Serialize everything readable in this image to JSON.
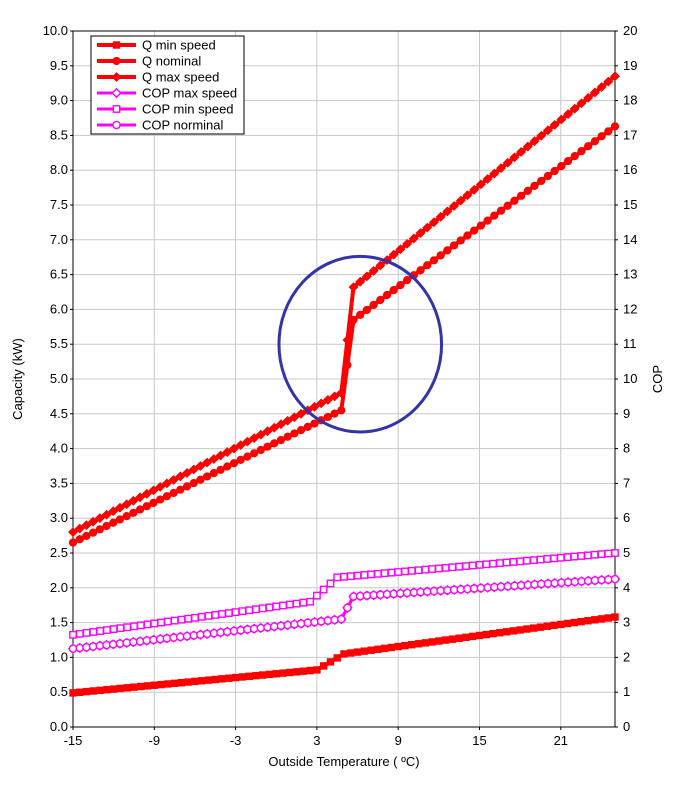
{
  "chart_data": {
    "type": "line",
    "xlabel": "Outside Temperature ( ºC)",
    "ylabel": "Capacity (kW)",
    "y2label": "COP",
    "xlim": [
      -15,
      25
    ],
    "ylim": [
      0,
      10
    ],
    "y2lim": [
      0,
      20
    ],
    "xticks": [
      "-15",
      "-9",
      "-3",
      "3",
      "9",
      "15",
      "21"
    ],
    "yticks": [
      "0.0",
      "0.5",
      "1.0",
      "1.5",
      "2.0",
      "2.5",
      "3.0",
      "3.5",
      "4.0",
      "4.5",
      "5.0",
      "5.5",
      "6.0",
      "6.5",
      "7.0",
      "7.5",
      "8.0",
      "8.5",
      "9.0",
      "9.5",
      "10.0"
    ],
    "y2ticks": [
      "0",
      "1",
      "2",
      "3",
      "4",
      "5",
      "6",
      "7",
      "8",
      "9",
      "10",
      "11",
      "12",
      "13",
      "14",
      "15",
      "16",
      "17",
      "18",
      "19",
      "20"
    ],
    "grid": true,
    "legend_position": "top-left",
    "colors": {
      "capacity": "#ff0000",
      "cop": "#ff00ff",
      "highlight": "#3333aa"
    },
    "series": [
      {
        "name": "Q min speed",
        "axis": "left",
        "marker": "filled-square",
        "color": "#ff0000",
        "x": [
          -15,
          3,
          5,
          25
        ],
        "y": [
          0.49,
          0.82,
          1.05,
          1.58
        ]
      },
      {
        "name": "Q nominal",
        "axis": "left",
        "marker": "filled-circle",
        "color": "#ff0000",
        "x": [
          -15,
          4.8,
          5.7,
          25
        ],
        "y": [
          2.65,
          4.55,
          5.85,
          8.63
        ]
      },
      {
        "name": "Q max speed",
        "axis": "left",
        "marker": "filled-diamond",
        "color": "#ff0000",
        "x": [
          -15,
          4.8,
          5.7,
          25
        ],
        "y": [
          2.8,
          4.8,
          6.32,
          9.35
        ]
      },
      {
        "name": "COP max speed",
        "axis": "right",
        "marker": "hollow-diamond",
        "color": "#ff00ff",
        "x": [
          -15,
          4.8,
          5.7,
          25
        ],
        "y": [
          2.25,
          3.1,
          3.75,
          4.25
        ]
      },
      {
        "name": "COP min speed",
        "axis": "right",
        "marker": "hollow-square",
        "color": "#ff00ff",
        "x": [
          -15,
          2.5,
          4.5,
          25
        ],
        "y": [
          2.65,
          3.6,
          4.3,
          5.0
        ]
      },
      {
        "name": "COP norminal",
        "axis": "right",
        "marker": "hollow-circle",
        "color": "#ff00ff",
        "x": [
          -15,
          4.8,
          5.7,
          25
        ],
        "y": [
          2.25,
          3.1,
          3.75,
          4.25
        ]
      }
    ],
    "annotation": {
      "type": "circle",
      "shape": "outline",
      "center": [
        6.2,
        5.5
      ],
      "radius_x_units": 6.0,
      "color": "#3333aa"
    }
  }
}
